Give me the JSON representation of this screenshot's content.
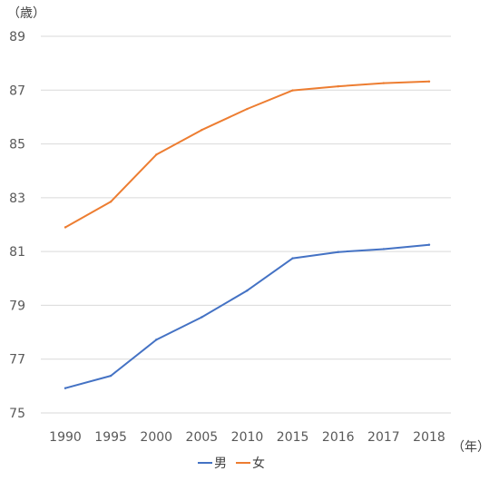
{
  "chart_data": {
    "type": "line",
    "x": [
      "1990",
      "1995",
      "2000",
      "2005",
      "2010",
      "2015",
      "2016",
      "2017",
      "2018"
    ],
    "series": [
      {
        "name": "男",
        "color": "#4472c4",
        "values": [
          75.92,
          76.38,
          77.72,
          78.56,
          79.55,
          80.75,
          80.98,
          81.09,
          81.25
        ]
      },
      {
        "name": "女",
        "color": "#ed7d31",
        "values": [
          81.9,
          82.85,
          84.6,
          85.52,
          86.3,
          86.99,
          87.14,
          87.26,
          87.32
        ]
      }
    ],
    "ylim": [
      75,
      89
    ],
    "yticks": [
      75,
      77,
      79,
      81,
      83,
      85,
      87,
      89
    ],
    "ylabel": "（歳）",
    "xlabel": "（年）",
    "grid": true,
    "legend": "bottom"
  }
}
